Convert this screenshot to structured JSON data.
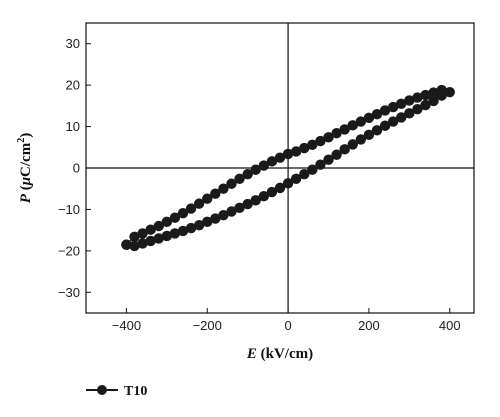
{
  "chart_data": {
    "type": "scatter",
    "xlabel": {
      "var": "E",
      "unit": " (kV/cm)"
    },
    "ylabel": {
      "var": "P",
      "open": " (",
      "mu": "μ",
      "unit": "C/cm",
      "sup": "2",
      "close": ")"
    },
    "xlim": [
      -500,
      460
    ],
    "ylim": [
      -35,
      35
    ],
    "x_ticks": [
      -400,
      -200,
      0,
      200,
      400
    ],
    "y_ticks": [
      -30,
      -20,
      -10,
      0,
      10,
      20,
      30
    ],
    "x_tick_labels": [
      "−400",
      "−200",
      "0",
      "200",
      "400"
    ],
    "y_tick_labels": [
      "−30",
      "−20",
      "−10",
      "0",
      "10",
      "20",
      "30"
    ],
    "reference_lines": {
      "x": 0,
      "y": 0
    },
    "grid": false,
    "legend_position": "bottom-left",
    "series": [
      {
        "name": "T10",
        "color": "#1a1a1a",
        "marker": "filled-circle",
        "line": true,
        "x": [
          -400,
          -380,
          -360,
          -340,
          -320,
          -300,
          -280,
          -260,
          -240,
          -220,
          -200,
          -180,
          -160,
          -140,
          -120,
          -100,
          -80,
          -60,
          -40,
          -20,
          0,
          20,
          40,
          60,
          80,
          100,
          120,
          140,
          160,
          180,
          200,
          220,
          240,
          260,
          280,
          300,
          320,
          340,
          360,
          380,
          400,
          380,
          360,
          340,
          320,
          300,
          280,
          260,
          240,
          220,
          200,
          180,
          160,
          140,
          120,
          100,
          80,
          60,
          40,
          20,
          0,
          -20,
          -40,
          -60,
          -80,
          -100,
          -120,
          -140,
          -160,
          -180,
          -200,
          -220,
          -240,
          -260,
          -280,
          -300,
          -320,
          -340,
          -360,
          -380,
          -400
        ],
        "y": [
          -18.5,
          -18.8,
          -18.2,
          -17.6,
          -17.0,
          -16.4,
          -15.8,
          -15.2,
          -14.5,
          -13.8,
          -13.0,
          -12.2,
          -11.4,
          -10.5,
          -9.6,
          -8.7,
          -7.8,
          -6.8,
          -5.8,
          -4.8,
          -3.7,
          -2.6,
          -1.5,
          -0.4,
          0.8,
          2.0,
          3.2,
          4.5,
          5.7,
          6.9,
          8.0,
          9.1,
          10.2,
          11.2,
          12.2,
          13.2,
          14.2,
          15.2,
          16.2,
          17.5,
          18.3,
          18.8,
          18.2,
          17.6,
          17.0,
          16.3,
          15.5,
          14.7,
          13.9,
          13.0,
          12.1,
          11.2,
          10.3,
          9.3,
          8.4,
          7.4,
          6.5,
          5.6,
          4.8,
          4.0,
          3.4,
          2.5,
          1.6,
          0.6,
          -0.4,
          -1.5,
          -2.6,
          -3.8,
          -5.0,
          -6.2,
          -7.4,
          -8.6,
          -9.8,
          -10.9,
          -12.0,
          -13.0,
          -14.0,
          -14.9,
          -15.8,
          -16.6,
          -18.5
        ]
      }
    ]
  }
}
